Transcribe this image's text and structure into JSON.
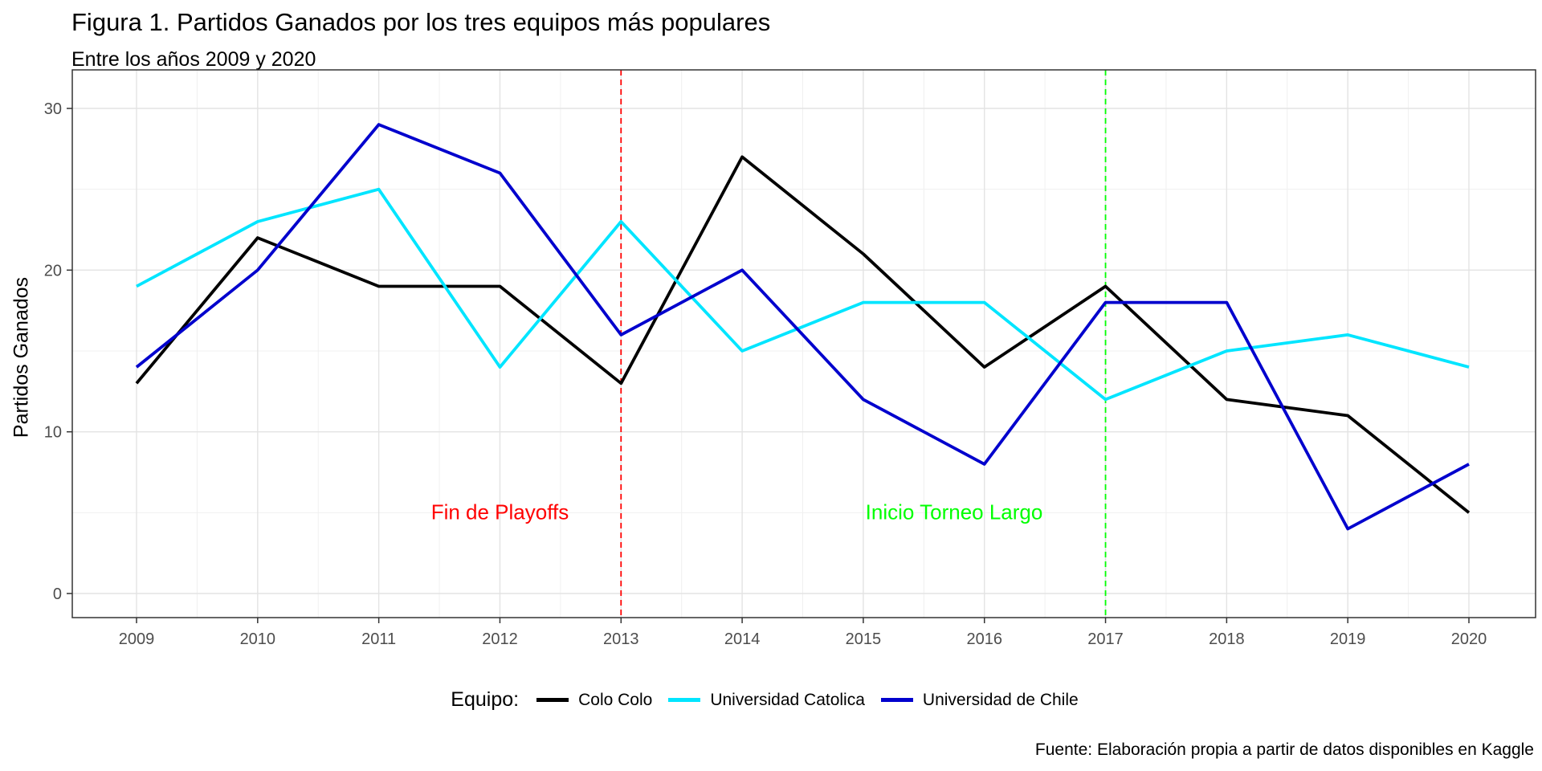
{
  "chart_data": {
    "type": "line",
    "title": "Figura 1. Partidos Ganados por los tres equipos más populares",
    "subtitle": "Entre los años 2009 y 2020",
    "xlabel": "",
    "ylabel": "Partidos Ganados",
    "x": [
      2009,
      2010,
      2011,
      2012,
      2013,
      2014,
      2015,
      2016,
      2017,
      2018,
      2019,
      2020
    ],
    "x_tick_labels": [
      "2009",
      "2010",
      "2011",
      "2012",
      "2013",
      "2014",
      "2015",
      "2016",
      "2017",
      "2018",
      "2019",
      "2020"
    ],
    "y_ticks": [
      0,
      10,
      20,
      30
    ],
    "y_tick_labels": [
      "0",
      "10",
      "20",
      "30"
    ],
    "xlim": [
      2009,
      2020
    ],
    "ylim": [
      0,
      30
    ],
    "grid": true,
    "legend": {
      "title": "Equipo:",
      "position": "bottom"
    },
    "series": [
      {
        "name": "Colo Colo",
        "color": "#000000",
        "values": [
          13,
          22,
          19,
          19,
          13,
          27,
          21,
          14,
          19,
          12,
          11,
          5
        ]
      },
      {
        "name": "Universidad Catolica",
        "color": "#00E5FF",
        "values": [
          19,
          23,
          25,
          14,
          23,
          15,
          18,
          18,
          12,
          15,
          16,
          14
        ]
      },
      {
        "name": "Universidad de Chile",
        "color": "#0000CD",
        "values": [
          14,
          20,
          29,
          26,
          16,
          20,
          12,
          8,
          18,
          18,
          4,
          8
        ]
      }
    ],
    "vlines": [
      {
        "x": 2013,
        "color": "#FF0000"
      },
      {
        "x": 2017,
        "color": "#00FF00"
      }
    ],
    "annotations": [
      {
        "text": "Fin de Playoffs",
        "x": 2012,
        "y": 5,
        "color": "#FF0000"
      },
      {
        "text": "Inicio Torneo Largo",
        "x": 2015.75,
        "y": 5,
        "color": "#00FF00"
      }
    ],
    "caption": "Fuente: Elaboración propia a partir de datos disponibles en Kaggle"
  }
}
